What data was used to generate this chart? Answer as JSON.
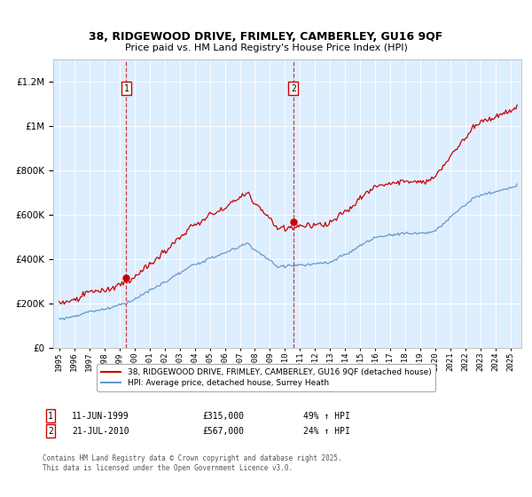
{
  "title1": "38, RIDGEWOOD DRIVE, FRIMLEY, CAMBERLEY, GU16 9QF",
  "title2": "Price paid vs. HM Land Registry's House Price Index (HPI)",
  "legend_line1": "38, RIDGEWOOD DRIVE, FRIMLEY, CAMBERLEY, GU16 9QF (detached house)",
  "legend_line2": "HPI: Average price, detached house, Surrey Heath",
  "annotation1_label": "1",
  "annotation1_date": "11-JUN-1999",
  "annotation1_price": "£315,000",
  "annotation1_hpi": "49% ↑ HPI",
  "annotation1_year": 1999.45,
  "annotation1_value": 315000,
  "annotation2_label": "2",
  "annotation2_date": "21-JUL-2010",
  "annotation2_price": "£567,000",
  "annotation2_hpi": "24% ↑ HPI",
  "annotation2_year": 2010.55,
  "annotation2_value": 567000,
  "footer": "Contains HM Land Registry data © Crown copyright and database right 2025.\nThis data is licensed under the Open Government Licence v3.0.",
  "red_color": "#cc0000",
  "blue_color": "#6699cc",
  "bg_color": "#ddeeff",
  "ylim": [
    0,
    1300000
  ],
  "yticks": [
    0,
    200000,
    400000,
    600000,
    800000,
    1000000,
    1200000
  ]
}
